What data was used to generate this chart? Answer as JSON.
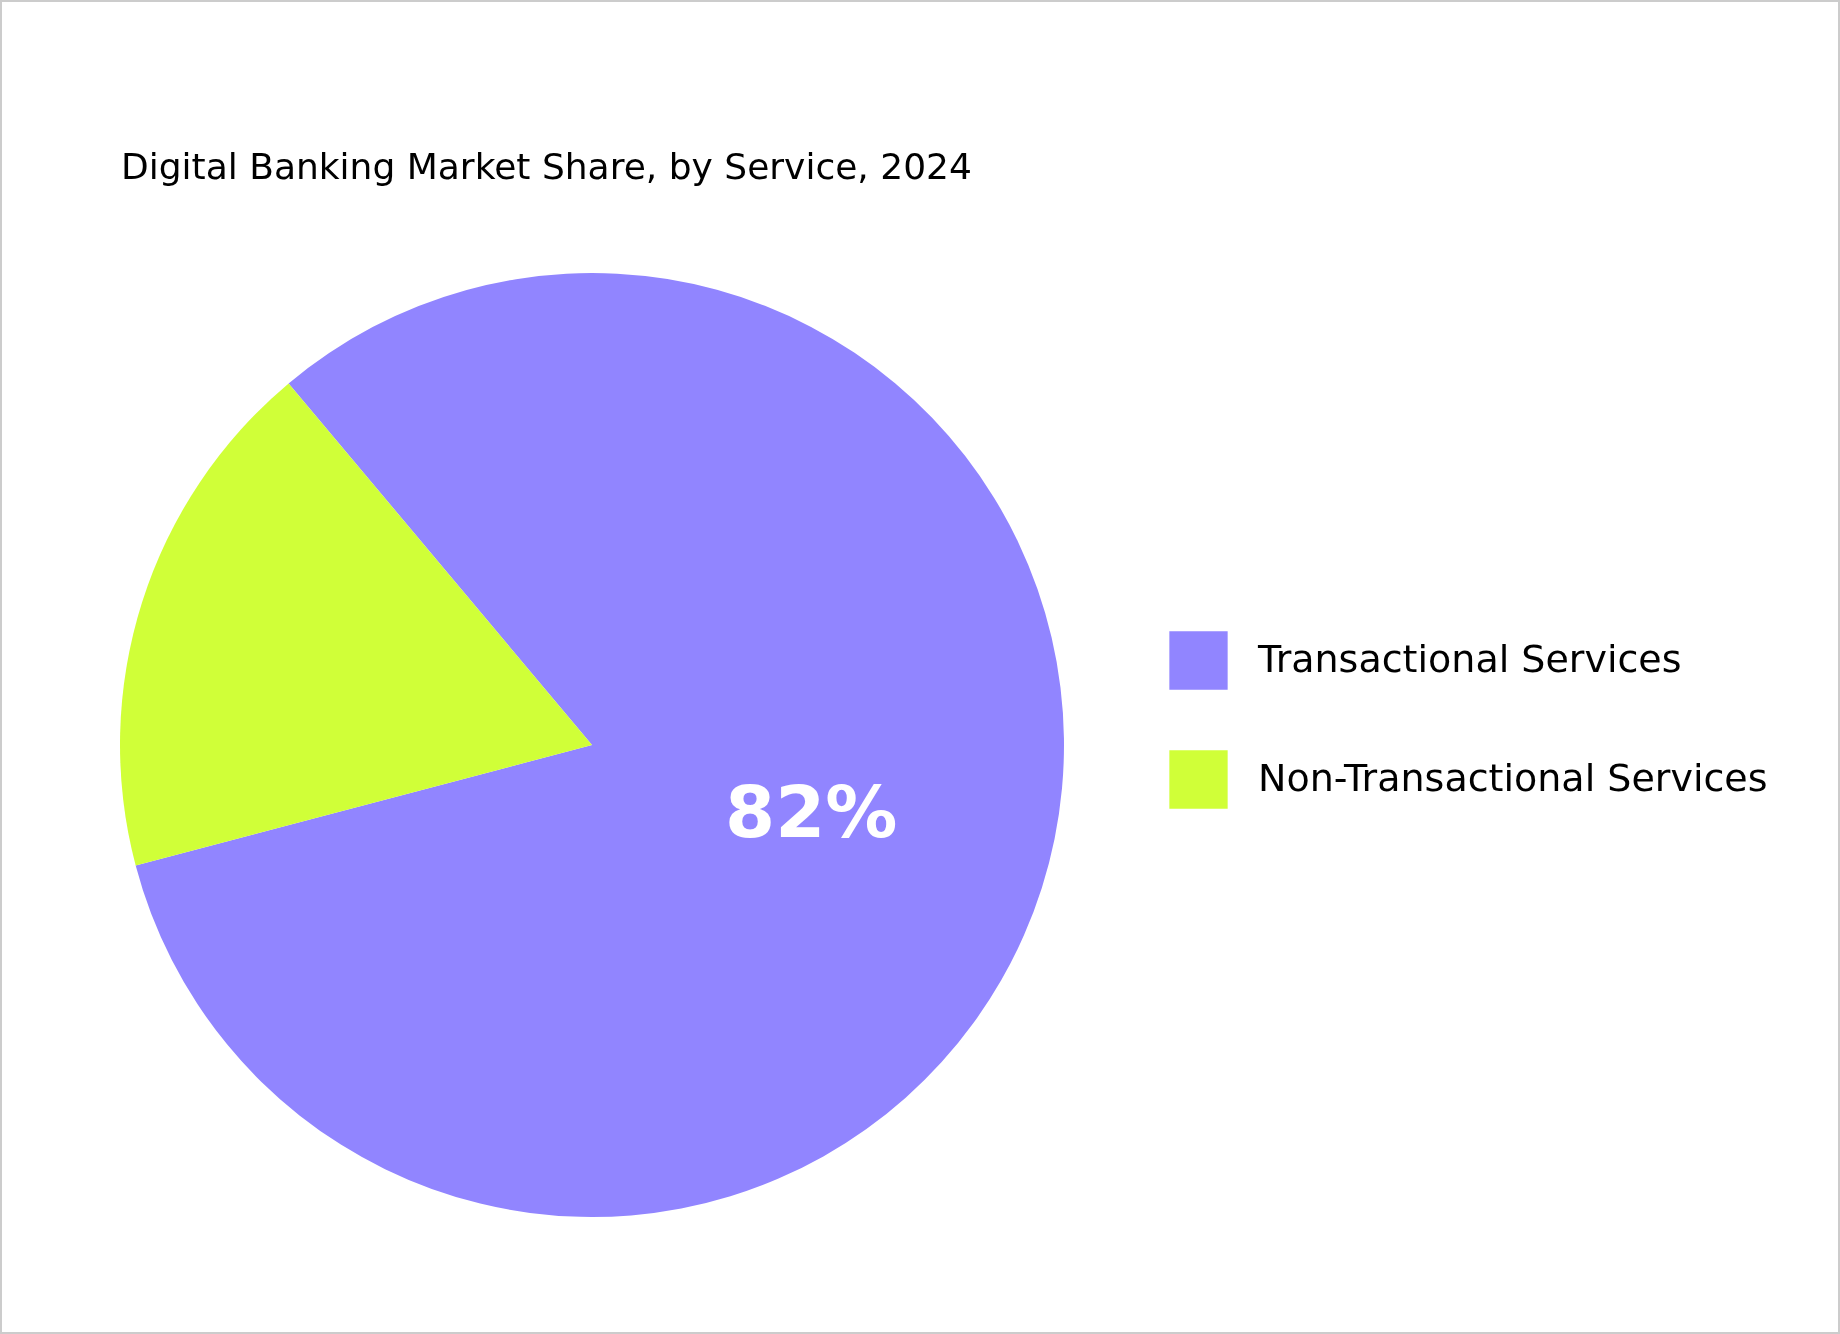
{
  "chart_data": {
    "type": "pie",
    "title": "Digital Banking Market Share, by Service, 2024",
    "categories": [
      "Transactional Services",
      "Non-Transactional Services"
    ],
    "values": [
      82,
      18
    ],
    "colors": [
      "#9185ff",
      "#d0ff38"
    ],
    "value_labels": [
      "82%",
      null
    ],
    "legend": "right"
  }
}
